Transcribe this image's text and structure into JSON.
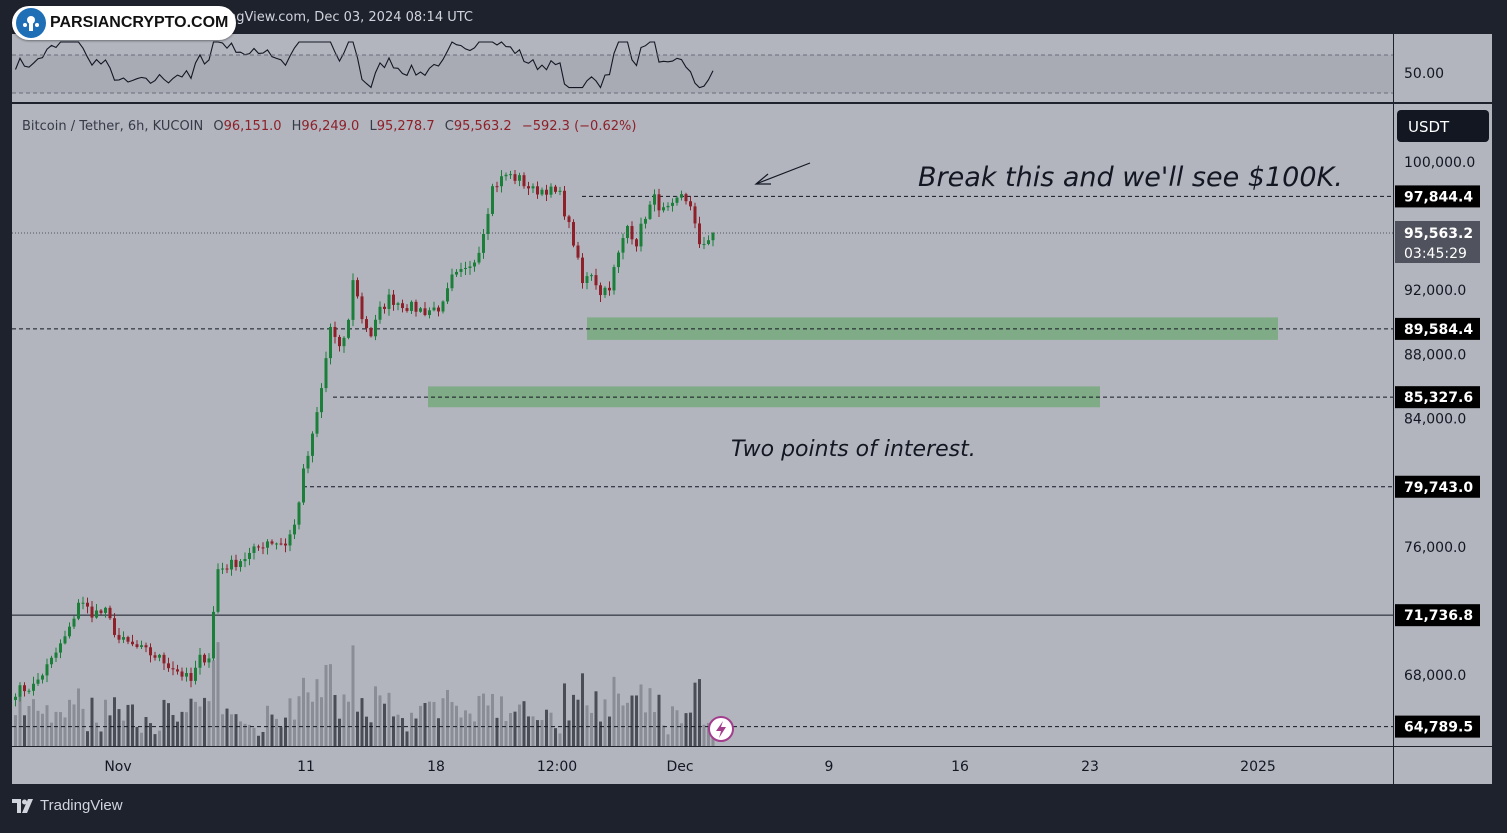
{
  "brand": {
    "badge_text": "PARSIANCRYPTO.COM",
    "footer_text": "TradingView"
  },
  "header": {
    "text": "ngView.com, Dec 03, 2024 08:14 UTC"
  },
  "legend": {
    "symbol": "Bitcoin / Tether, 6h, KUCOIN",
    "open_label": "O",
    "open": "96,151.0",
    "high_label": "H",
    "high": "96,249.0",
    "low_label": "L",
    "low": "95,278.7",
    "close_label": "C",
    "close": "95,563.2",
    "change": "−592.3 (−0.62%)"
  },
  "currency_button": "USDT",
  "oscillator": {
    "level_label": "50.00"
  },
  "annotations": {
    "break_text": "Break this and we'll see $100K.",
    "poi_text": "Two points of interest."
  },
  "colors": {
    "background": "#b2b5be",
    "frame": "#1e222d",
    "up": "#1b7f3a",
    "down": "#8d2029",
    "zone": "#6fa874",
    "label_bg": "#000000",
    "label_text": "#ffffff"
  },
  "chart_data": {
    "type": "candlestick",
    "title": "Bitcoin / Tether, 6h, KUCOIN",
    "ylim": [
      63800,
      102500
    ],
    "y_ticks": [
      "100,000.0",
      "92,000.0",
      "88,000.0",
      "84,000.0",
      "76,000.0",
      "68,000.0"
    ],
    "x_ticks": [
      "Nov",
      "11",
      "18",
      "12:00",
      "Dec",
      "9",
      "16",
      "23",
      "2025"
    ],
    "current_price": {
      "value": 95563.2,
      "label": "95,563.2",
      "countdown": "03:45:29"
    },
    "price_levels": [
      {
        "value": 97844.4,
        "label": "97,844.4",
        "style": "dashed"
      },
      {
        "value": 89584.4,
        "label": "89,584.4",
        "style": "dashed"
      },
      {
        "value": 85327.6,
        "label": "85,327.6",
        "style": "dashed"
      },
      {
        "value": 79743.0,
        "label": "79,743.0",
        "style": "dashed"
      },
      {
        "value": 71736.8,
        "label": "71,736.8",
        "style": "solid"
      },
      {
        "value": 64789.5,
        "label": "64,789.5",
        "style": "dashed"
      }
    ],
    "zones": [
      {
        "from": 88900,
        "to": 90300
      },
      {
        "from": 84700,
        "to": 86000
      }
    ],
    "waypoints": [
      [
        0,
        67000
      ],
      [
        4,
        67300
      ],
      [
        8,
        68900
      ],
      [
        12,
        70800
      ],
      [
        14,
        72600
      ],
      [
        17,
        71900
      ],
      [
        20,
        71900
      ],
      [
        23,
        70200
      ],
      [
        27,
        69700
      ],
      [
        31,
        69200
      ],
      [
        35,
        68500
      ],
      [
        39,
        67600
      ],
      [
        41,
        69000
      ],
      [
        43,
        69200
      ],
      [
        45,
        74600
      ],
      [
        48,
        74900
      ],
      [
        52,
        75500
      ],
      [
        56,
        76400
      ],
      [
        60,
        76200
      ],
      [
        62,
        77300
      ],
      [
        64,
        80600
      ],
      [
        66,
        82800
      ],
      [
        68,
        85800
      ],
      [
        70,
        89700
      ],
      [
        72,
        88200
      ],
      [
        74,
        90000
      ],
      [
        75,
        92800
      ],
      [
        77,
        90300
      ],
      [
        79,
        89200
      ],
      [
        81,
        90700
      ],
      [
        83,
        91500
      ],
      [
        87,
        91000
      ],
      [
        91,
        90700
      ],
      [
        95,
        91000
      ],
      [
        97,
        92700
      ],
      [
        100,
        93200
      ],
      [
        103,
        94500
      ],
      [
        106,
        98400
      ],
      [
        109,
        99200
      ],
      [
        112,
        98900
      ],
      [
        115,
        98200
      ],
      [
        118,
        98300
      ],
      [
        121,
        97900
      ],
      [
        124,
        95000
      ],
      [
        126,
        92400
      ],
      [
        128,
        93100
      ],
      [
        130,
        91900
      ],
      [
        132,
        92300
      ],
      [
        134,
        94200
      ],
      [
        136,
        96000
      ],
      [
        138,
        95000
      ],
      [
        140,
        96700
      ],
      [
        142,
        97700
      ],
      [
        144,
        96900
      ],
      [
        146,
        97100
      ],
      [
        148,
        97800
      ],
      [
        150,
        97400
      ],
      [
        152,
        94600
      ],
      [
        154,
        95300
      ],
      [
        155,
        95563
      ]
    ]
  }
}
